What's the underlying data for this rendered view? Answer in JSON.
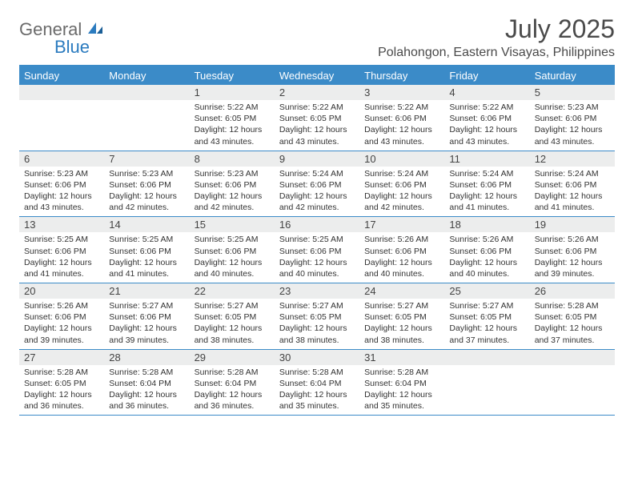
{
  "colors": {
    "accent": "#3b8bc8",
    "daynum_bg": "#eceded",
    "background": "#ffffff",
    "text": "#333333",
    "title_text": "#4a4a4a",
    "logo_gray": "#6a6a6a",
    "logo_blue": "#2b7bbf"
  },
  "logo": {
    "part1": "General",
    "part2": "Blue"
  },
  "title": "July 2025",
  "location": "Polahongon, Eastern Visayas, Philippines",
  "days_of_week": [
    "Sunday",
    "Monday",
    "Tuesday",
    "Wednesday",
    "Thursday",
    "Friday",
    "Saturday"
  ],
  "layout": {
    "columns": 7,
    "rows": 5,
    "first_weekday_index": 2
  },
  "typography": {
    "title_fontsize": 32,
    "location_fontsize": 16,
    "dow_fontsize": 13,
    "daynum_fontsize": 13,
    "detail_fontsize": 10.5
  },
  "days": [
    {
      "n": 1,
      "sunrise": "5:22 AM",
      "sunset": "6:05 PM",
      "daylight": "12 hours and 43 minutes."
    },
    {
      "n": 2,
      "sunrise": "5:22 AM",
      "sunset": "6:05 PM",
      "daylight": "12 hours and 43 minutes."
    },
    {
      "n": 3,
      "sunrise": "5:22 AM",
      "sunset": "6:06 PM",
      "daylight": "12 hours and 43 minutes."
    },
    {
      "n": 4,
      "sunrise": "5:22 AM",
      "sunset": "6:06 PM",
      "daylight": "12 hours and 43 minutes."
    },
    {
      "n": 5,
      "sunrise": "5:23 AM",
      "sunset": "6:06 PM",
      "daylight": "12 hours and 43 minutes."
    },
    {
      "n": 6,
      "sunrise": "5:23 AM",
      "sunset": "6:06 PM",
      "daylight": "12 hours and 43 minutes."
    },
    {
      "n": 7,
      "sunrise": "5:23 AM",
      "sunset": "6:06 PM",
      "daylight": "12 hours and 42 minutes."
    },
    {
      "n": 8,
      "sunrise": "5:23 AM",
      "sunset": "6:06 PM",
      "daylight": "12 hours and 42 minutes."
    },
    {
      "n": 9,
      "sunrise": "5:24 AM",
      "sunset": "6:06 PM",
      "daylight": "12 hours and 42 minutes."
    },
    {
      "n": 10,
      "sunrise": "5:24 AM",
      "sunset": "6:06 PM",
      "daylight": "12 hours and 42 minutes."
    },
    {
      "n": 11,
      "sunrise": "5:24 AM",
      "sunset": "6:06 PM",
      "daylight": "12 hours and 41 minutes."
    },
    {
      "n": 12,
      "sunrise": "5:24 AM",
      "sunset": "6:06 PM",
      "daylight": "12 hours and 41 minutes."
    },
    {
      "n": 13,
      "sunrise": "5:25 AM",
      "sunset": "6:06 PM",
      "daylight": "12 hours and 41 minutes."
    },
    {
      "n": 14,
      "sunrise": "5:25 AM",
      "sunset": "6:06 PM",
      "daylight": "12 hours and 41 minutes."
    },
    {
      "n": 15,
      "sunrise": "5:25 AM",
      "sunset": "6:06 PM",
      "daylight": "12 hours and 40 minutes."
    },
    {
      "n": 16,
      "sunrise": "5:25 AM",
      "sunset": "6:06 PM",
      "daylight": "12 hours and 40 minutes."
    },
    {
      "n": 17,
      "sunrise": "5:26 AM",
      "sunset": "6:06 PM",
      "daylight": "12 hours and 40 minutes."
    },
    {
      "n": 18,
      "sunrise": "5:26 AM",
      "sunset": "6:06 PM",
      "daylight": "12 hours and 40 minutes."
    },
    {
      "n": 19,
      "sunrise": "5:26 AM",
      "sunset": "6:06 PM",
      "daylight": "12 hours and 39 minutes."
    },
    {
      "n": 20,
      "sunrise": "5:26 AM",
      "sunset": "6:06 PM",
      "daylight": "12 hours and 39 minutes."
    },
    {
      "n": 21,
      "sunrise": "5:27 AM",
      "sunset": "6:06 PM",
      "daylight": "12 hours and 39 minutes."
    },
    {
      "n": 22,
      "sunrise": "5:27 AM",
      "sunset": "6:05 PM",
      "daylight": "12 hours and 38 minutes."
    },
    {
      "n": 23,
      "sunrise": "5:27 AM",
      "sunset": "6:05 PM",
      "daylight": "12 hours and 38 minutes."
    },
    {
      "n": 24,
      "sunrise": "5:27 AM",
      "sunset": "6:05 PM",
      "daylight": "12 hours and 38 minutes."
    },
    {
      "n": 25,
      "sunrise": "5:27 AM",
      "sunset": "6:05 PM",
      "daylight": "12 hours and 37 minutes."
    },
    {
      "n": 26,
      "sunrise": "5:28 AM",
      "sunset": "6:05 PM",
      "daylight": "12 hours and 37 minutes."
    },
    {
      "n": 27,
      "sunrise": "5:28 AM",
      "sunset": "6:05 PM",
      "daylight": "12 hours and 36 minutes."
    },
    {
      "n": 28,
      "sunrise": "5:28 AM",
      "sunset": "6:04 PM",
      "daylight": "12 hours and 36 minutes."
    },
    {
      "n": 29,
      "sunrise": "5:28 AM",
      "sunset": "6:04 PM",
      "daylight": "12 hours and 36 minutes."
    },
    {
      "n": 30,
      "sunrise": "5:28 AM",
      "sunset": "6:04 PM",
      "daylight": "12 hours and 35 minutes."
    },
    {
      "n": 31,
      "sunrise": "5:28 AM",
      "sunset": "6:04 PM",
      "daylight": "12 hours and 35 minutes."
    }
  ],
  "labels": {
    "sunrise": "Sunrise:",
    "sunset": "Sunset:",
    "daylight": "Daylight:"
  }
}
